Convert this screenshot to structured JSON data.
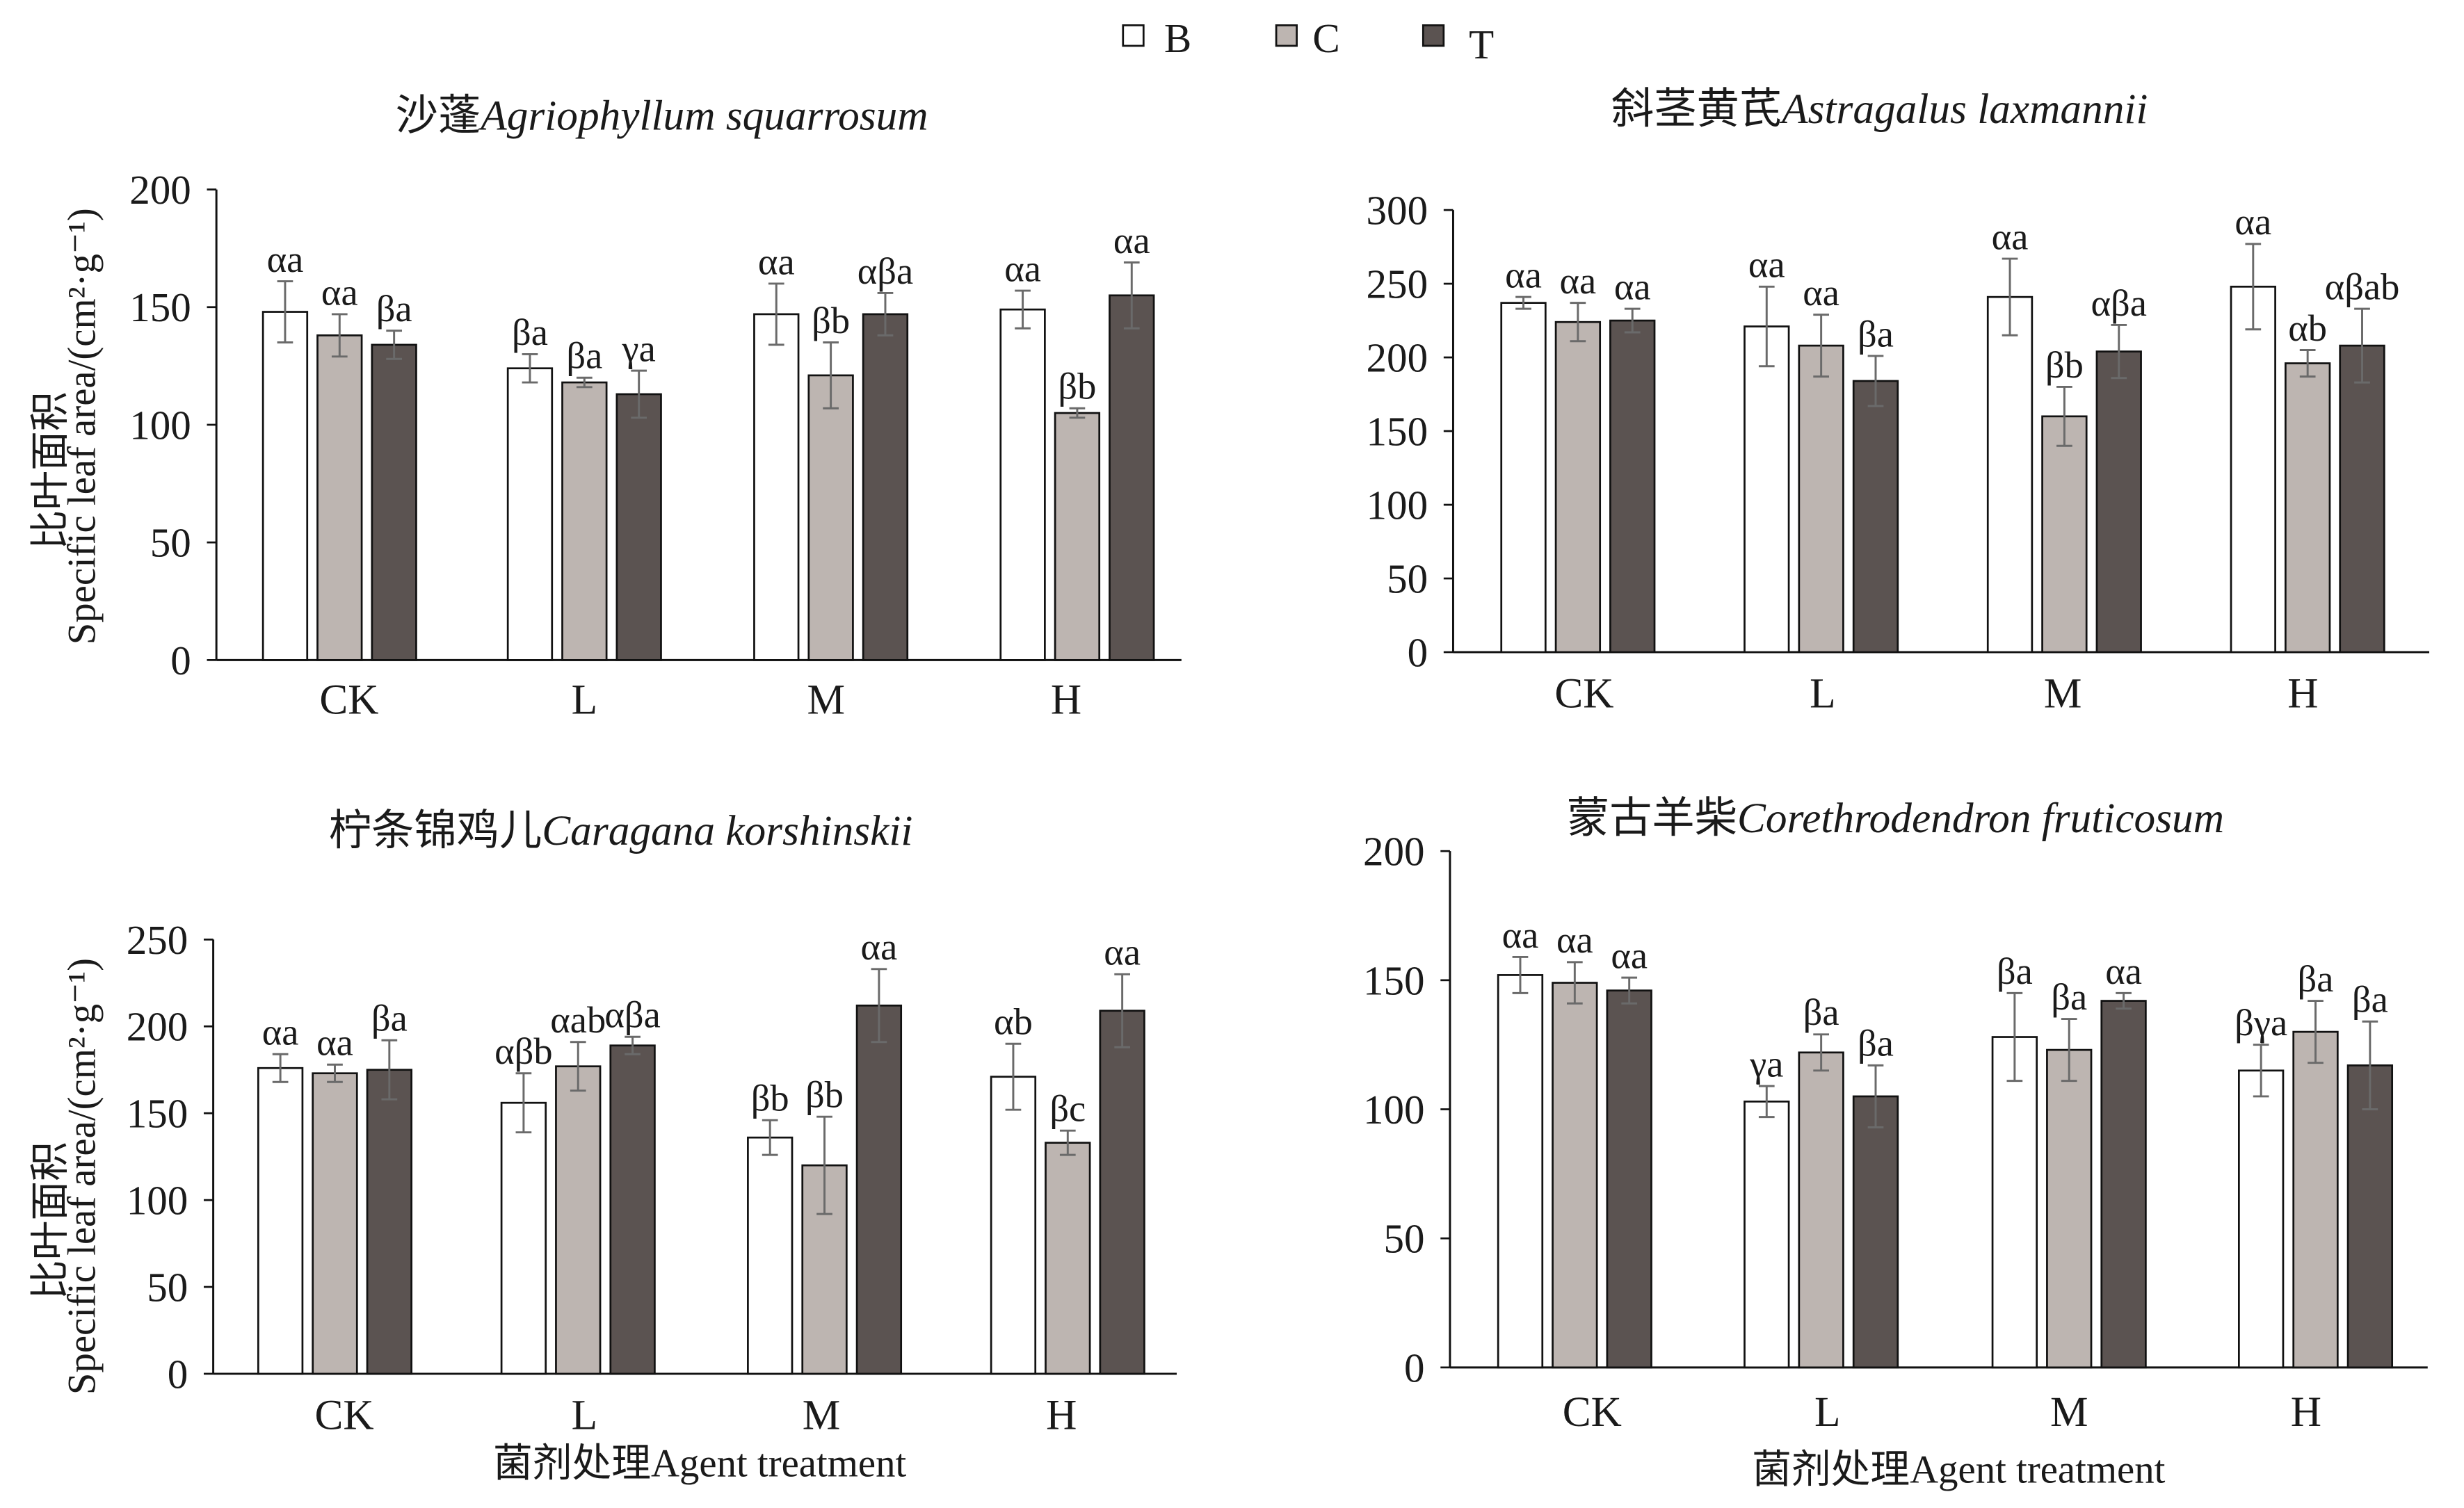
{
  "legend": {
    "items": [
      {
        "label": "B",
        "color": "#ffffff"
      },
      {
        "label": "C",
        "color": "#bdb5b1"
      },
      {
        "label": "T",
        "color": "#5b5351"
      }
    ]
  },
  "chart_data": [
    {
      "type": "bar",
      "title_zh": "沙蓬",
      "title_latin": "Agriophyllum squarrosum",
      "ylabel_zh": "比叶面积",
      "ylabel_en": "Specific leaf area/(cm²·g⁻¹)",
      "ylim": [
        0,
        200
      ],
      "yticks": [
        0,
        50,
        100,
        150,
        200
      ],
      "categories": [
        "CK",
        "L",
        "M",
        "H"
      ],
      "series": [
        {
          "name": "B",
          "values": [
            148,
            124,
            147,
            149
          ],
          "errors": [
            13,
            6,
            13,
            8
          ],
          "letters": [
            "αa",
            "βa",
            "αa",
            "αa"
          ]
        },
        {
          "name": "C",
          "values": [
            138,
            118,
            121,
            105
          ],
          "errors": [
            9,
            2,
            14,
            2
          ],
          "letters": [
            "αa",
            "βa",
            "βb",
            "βb"
          ]
        },
        {
          "name": "T",
          "values": [
            134,
            113,
            147,
            155
          ],
          "errors": [
            6,
            10,
            9,
            14
          ],
          "letters": [
            "βa",
            "γa",
            "αβa",
            "αa"
          ]
        }
      ]
    },
    {
      "type": "bar",
      "title_zh": "斜茎黄芪",
      "title_latin": "Astragalus laxmannii",
      "ylim": [
        0,
        300
      ],
      "yticks": [
        0,
        50,
        100,
        150,
        200,
        250,
        300
      ],
      "categories": [
        "CK",
        "L",
        "M",
        "H"
      ],
      "series": [
        {
          "name": "B",
          "values": [
            237,
            221,
            241,
            248
          ],
          "errors": [
            4,
            27,
            26,
            29
          ],
          "letters": [
            "αa",
            "αa",
            "αa",
            "αa"
          ]
        },
        {
          "name": "C",
          "values": [
            224,
            208,
            160,
            196
          ],
          "errors": [
            13,
            21,
            20,
            9
          ],
          "letters": [
            "αa",
            "αa",
            "βb",
            "αb"
          ]
        },
        {
          "name": "T",
          "values": [
            225,
            184,
            204,
            208
          ],
          "errors": [
            8,
            17,
            18,
            25
          ],
          "letters": [
            "αa",
            "βa",
            "αβa",
            "αβab"
          ]
        }
      ]
    },
    {
      "type": "bar",
      "title_zh": "柠条锦鸡儿",
      "title_latin": "Caragana korshinskii",
      "ylabel_zh": "比叶面积",
      "ylabel_en": "Specific leaf area/(cm²·g⁻¹)",
      "xlabel": "菌剂处理Agent treatment",
      "ylim": [
        0,
        250
      ],
      "yticks": [
        0,
        50,
        100,
        150,
        200,
        250
      ],
      "categories": [
        "CK",
        "L",
        "M",
        "H"
      ],
      "series": [
        {
          "name": "B",
          "values": [
            176,
            156,
            136,
            171
          ],
          "errors": [
            8,
            17,
            10,
            19
          ],
          "letters": [
            "αa",
            "αβb",
            "βb",
            "αb"
          ]
        },
        {
          "name": "C",
          "values": [
            173,
            177,
            120,
            133
          ],
          "errors": [
            5,
            14,
            28,
            7
          ],
          "letters": [
            "αa",
            "αab",
            "βb",
            "βc"
          ]
        },
        {
          "name": "T",
          "values": [
            175,
            189,
            212,
            209
          ],
          "errors": [
            17,
            5,
            21,
            21
          ],
          "letters": [
            "βa",
            "αβa",
            "αa",
            "αa"
          ]
        }
      ]
    },
    {
      "type": "bar",
      "title_zh": "蒙古羊柴",
      "title_latin": "Corethrodendron fruticosum",
      "xlabel": "菌剂处理Agent treatment",
      "ylim": [
        0,
        200
      ],
      "yticks": [
        0,
        50,
        100,
        150,
        200
      ],
      "categories": [
        "CK",
        "L",
        "M",
        "H"
      ],
      "series": [
        {
          "name": "B",
          "values": [
            152,
            103,
            128,
            115
          ],
          "errors": [
            7,
            6,
            17,
            10
          ],
          "letters": [
            "αa",
            "γa",
            "βa",
            "βγa"
          ]
        },
        {
          "name": "C",
          "values": [
            149,
            122,
            123,
            130
          ],
          "errors": [
            8,
            7,
            12,
            12
          ],
          "letters": [
            "αa",
            "βa",
            "βa",
            "βa"
          ]
        },
        {
          "name": "T",
          "values": [
            146,
            105,
            142,
            117
          ],
          "errors": [
            5,
            12,
            3,
            17
          ],
          "letters": [
            "αa",
            "βa",
            "αa",
            "βa"
          ]
        }
      ]
    }
  ]
}
